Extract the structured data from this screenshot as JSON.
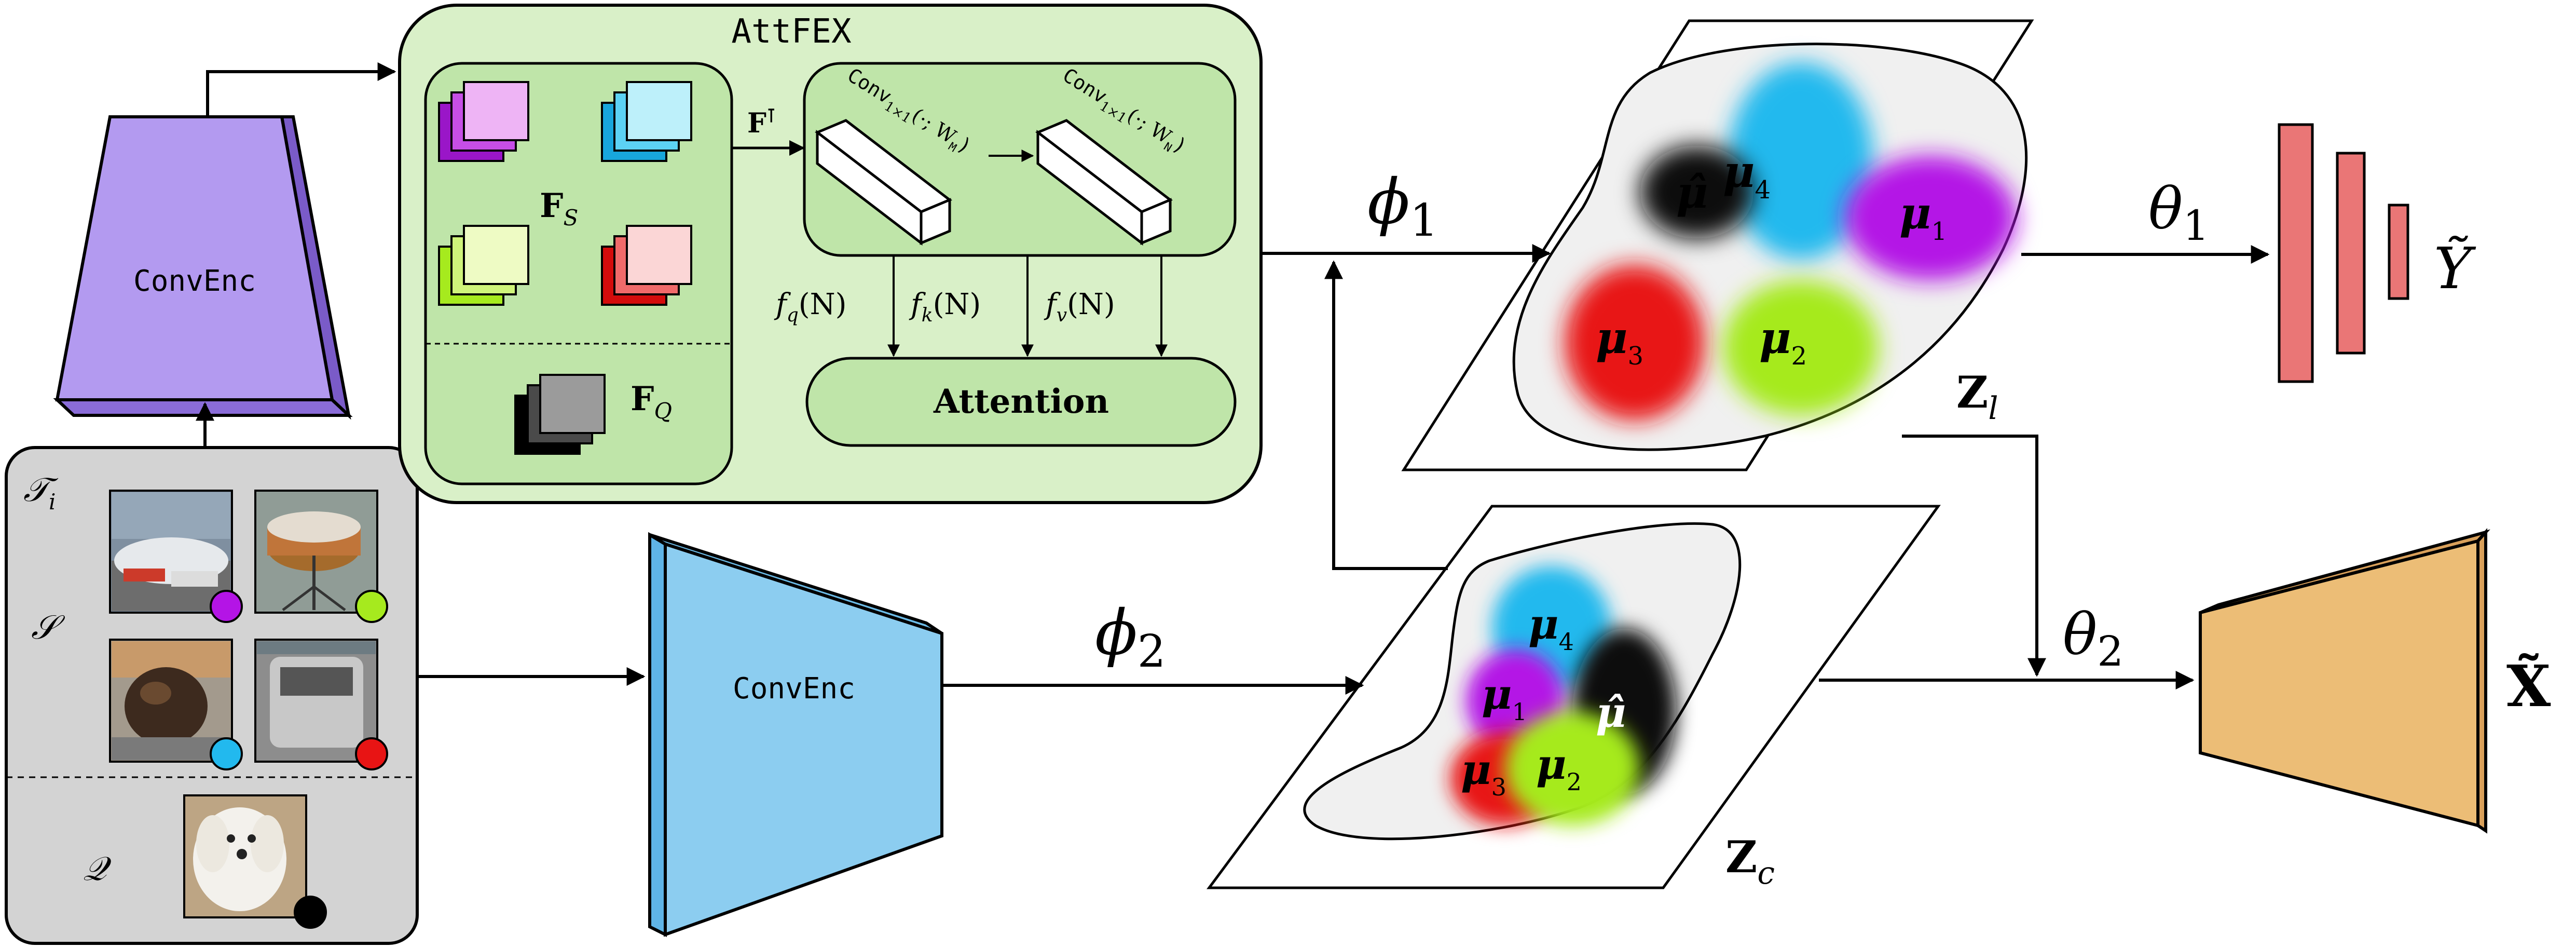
{
  "attfex": {
    "title": "AttFEX",
    "support_feature_label": "F",
    "support_feature_sub": "S",
    "query_feature_label": "F",
    "query_feature_sub": "Q",
    "transpose_label": "F",
    "transpose_sup": "⊺",
    "conv_m": "Conv",
    "conv_m_sub": "1×1",
    "conv_m_args": "(·; W",
    "conv_m_w_sub": "M",
    "conv_m_close": ")",
    "conv_n": "Conv",
    "conv_n_sub": "1×1",
    "conv_n_args": "(·; W",
    "conv_n_w_sub": "N",
    "conv_n_close": ")",
    "fq": "f",
    "fq_sub": "q",
    "fq_arg": "(N)",
    "fk": "f",
    "fk_sub": "k",
    "fk_arg": "(N)",
    "fv": "f",
    "fv_sub": "v",
    "fv_arg": "(N)",
    "attention": "Attention"
  },
  "encoders": {
    "top": "ConvEnc",
    "bottom": "ConvEnc"
  },
  "task": {
    "task_label": "𝒯",
    "task_sub": "i",
    "support_label": "𝒮",
    "query_label": "𝒬"
  },
  "mappings": {
    "phi1": "ϕ",
    "phi1_sub": "1",
    "phi2": "ϕ",
    "phi2_sub": "2",
    "theta1": "θ",
    "theta1_sub": "1",
    "theta2": "θ",
    "theta2_sub": "2"
  },
  "latent_l": {
    "label": "Z",
    "sub": "l",
    "mu_hat": "μ̂",
    "mu1": "μ",
    "mu1_sub": "1",
    "mu2": "μ",
    "mu2_sub": "2",
    "mu3": "μ",
    "mu3_sub": "3",
    "mu4": "μ",
    "mu4_sub": "4"
  },
  "latent_c": {
    "label": "Z",
    "sub": "c",
    "mu_hat": "μ̂",
    "mu1": "μ",
    "mu1_sub": "1",
    "mu2": "μ",
    "mu2_sub": "2",
    "mu3": "μ",
    "mu3_sub": "3",
    "mu4": "μ",
    "mu4_sub": "4"
  },
  "outputs": {
    "y_label": "Ỹ",
    "x_label": "X̃"
  },
  "colors": {
    "attfex_fill": "#d9f0c8",
    "attfex_inner": "#bfe5a9",
    "task_fill": "#d3d3d3",
    "encoder_top": "#b39af0",
    "encoder_bottom": "#8ccdf0",
    "decoder": "#ecbd76",
    "bars": "#ea7676",
    "class1": "#b414e6",
    "class2": "#a6ea1e",
    "class3": "#e81414",
    "class4": "#22b9ee",
    "query": "#000000"
  }
}
